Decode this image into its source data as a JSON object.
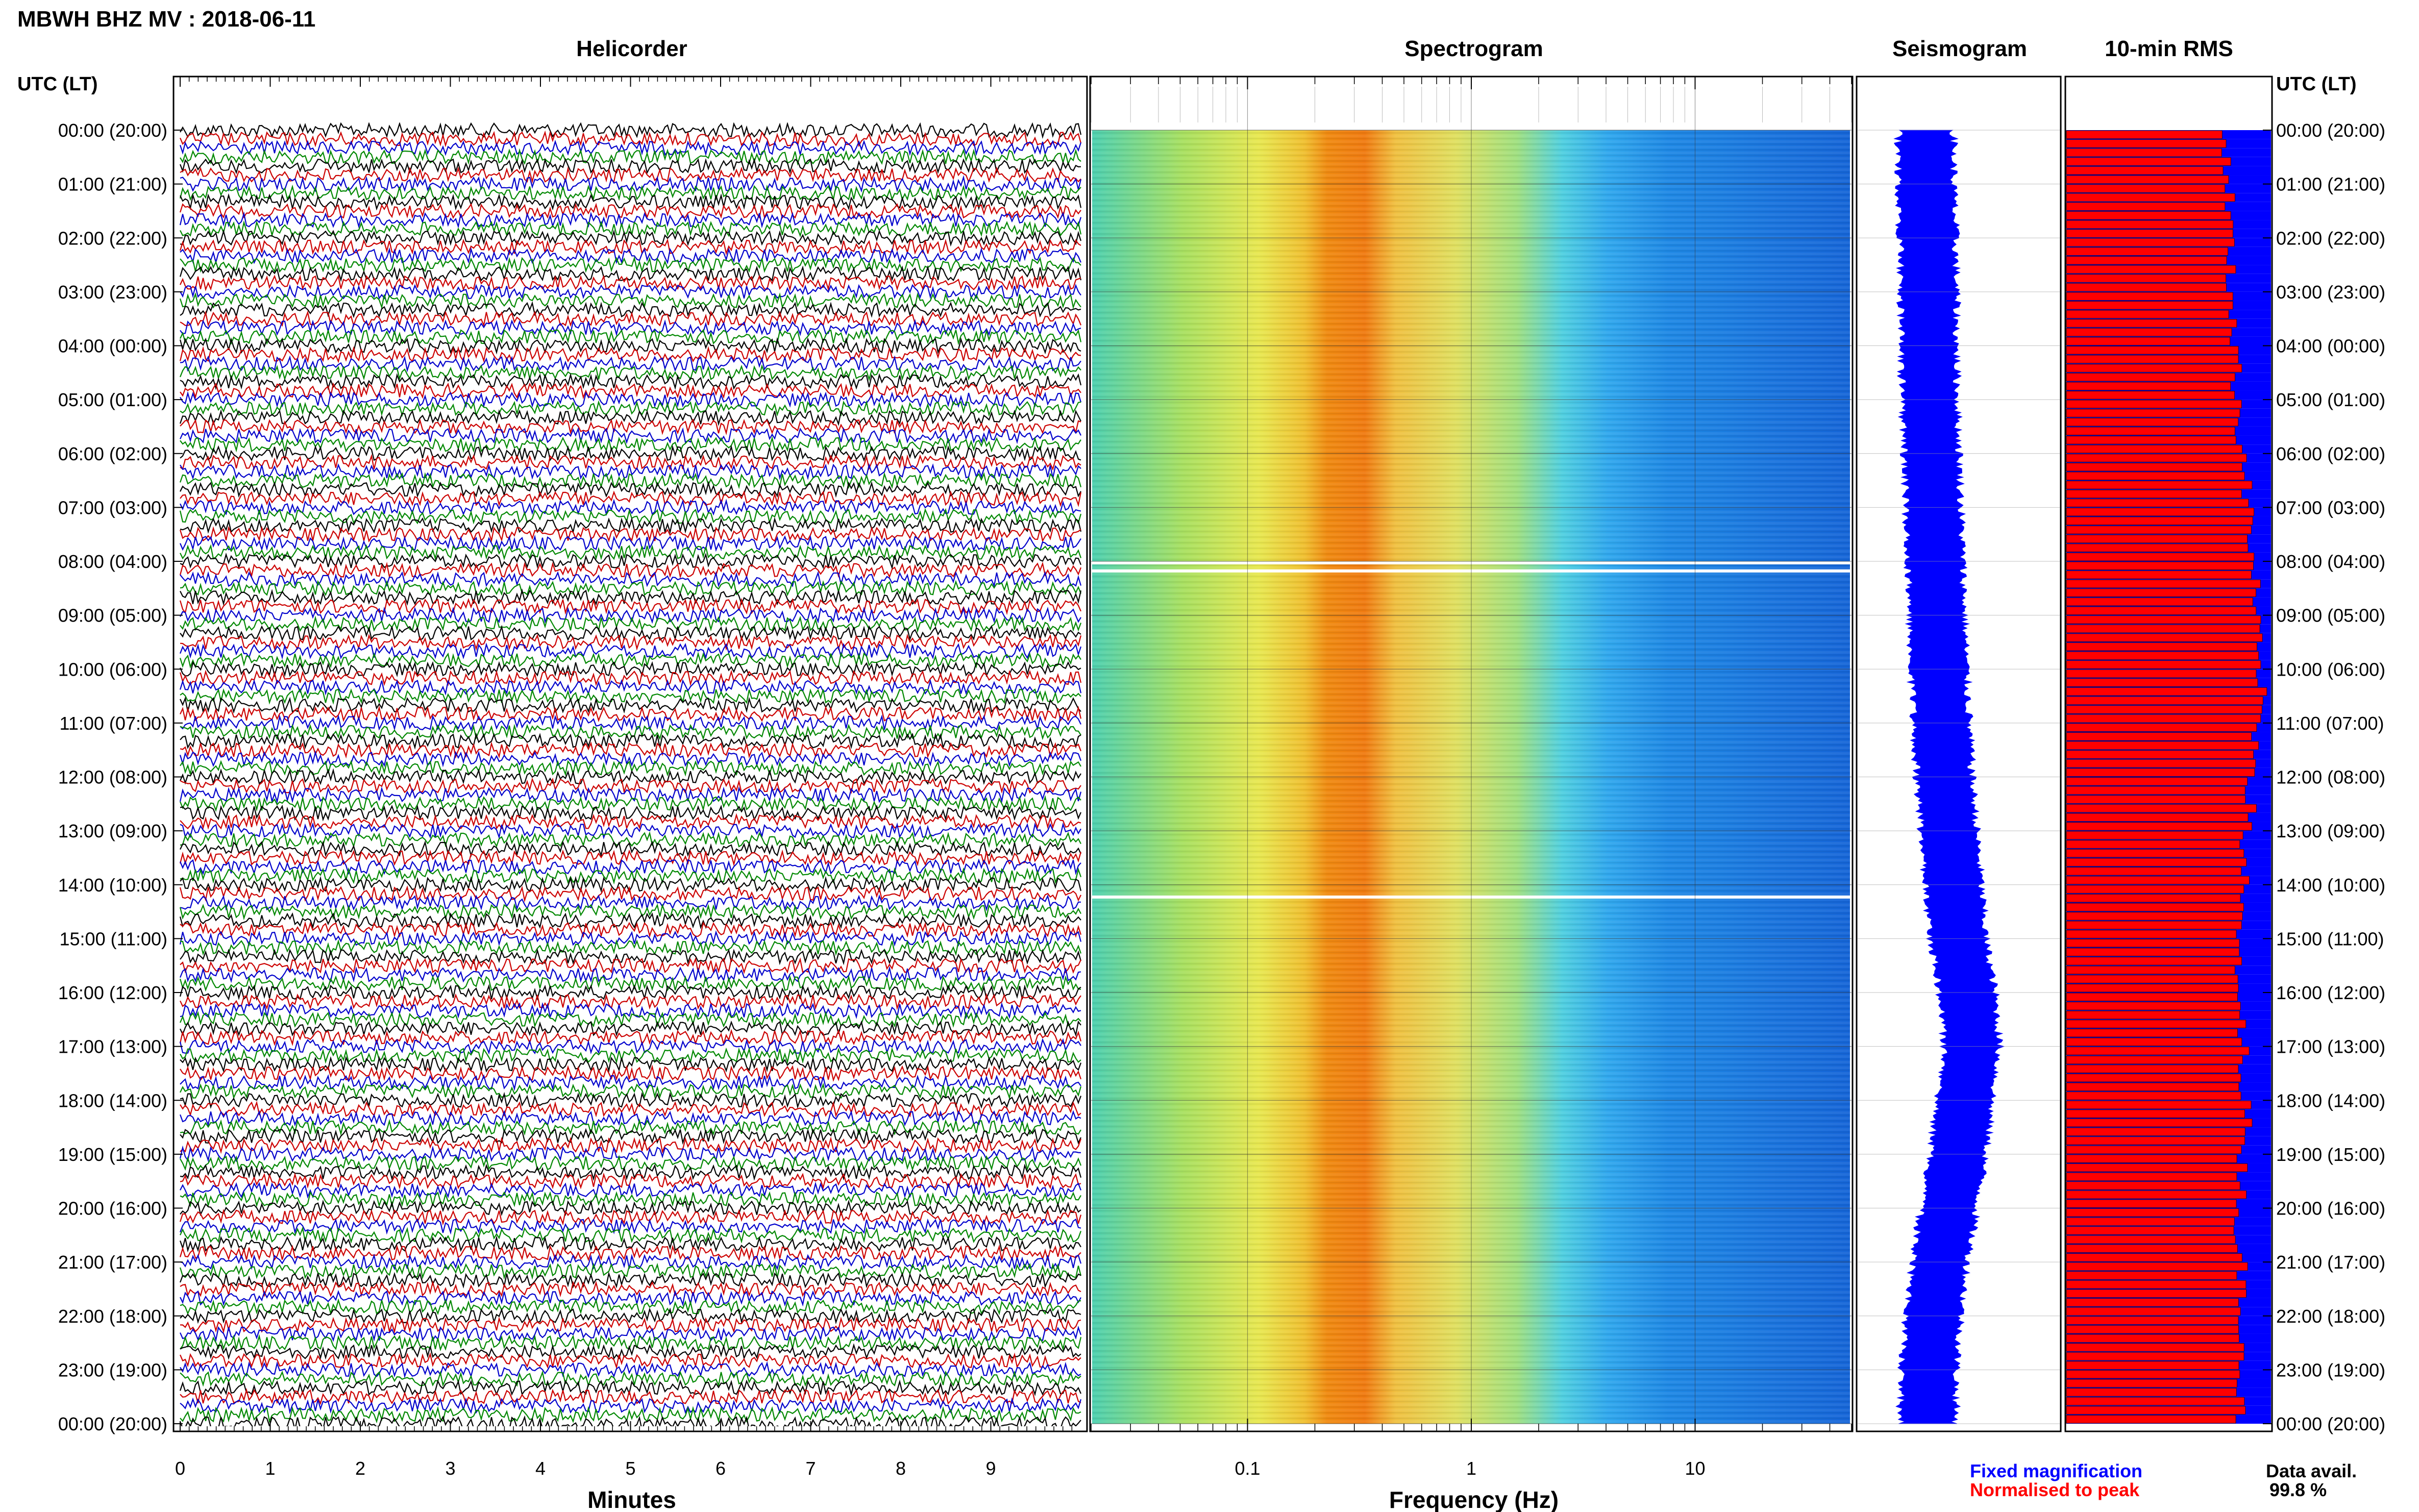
{
  "page": {
    "title": "MBWH BHZ MV : 2018-06-11",
    "time_axis_label_left": "UTC (LT)",
    "time_axis_label_right": "UTC (LT)"
  },
  "panels": {
    "helicorder": {
      "title": "Helicorder",
      "xlabel": "Minutes"
    },
    "spectrogram": {
      "title": "Spectrogram",
      "xlabel": "Frequency (Hz)"
    },
    "seismogram": {
      "title": "Seismogram"
    },
    "rms": {
      "title": "10-min RMS"
    }
  },
  "legend": {
    "fixed": "Fixed magnification",
    "normalised": "Normalised to peak",
    "fixed_color": "#0000ff",
    "normalised_color": "#ff0000",
    "avail_label": "Data avail.",
    "avail_value": "99.8 %"
  },
  "chart_data": [
    {
      "type": "line",
      "panel": "helicorder",
      "title": "Helicorder",
      "xlabel": "Minutes",
      "x_ticks": [
        "0",
        "1",
        "2",
        "3",
        "4",
        "5",
        "6",
        "7",
        "8",
        "9"
      ],
      "xlim": [
        0,
        10
      ],
      "time_labels": [
        "00:00 (20:00)",
        "01:00 (21:00)",
        "02:00 (22:00)",
        "03:00 (23:00)",
        "04:00 (00:00)",
        "05:00 (01:00)",
        "06:00 (02:00)",
        "07:00 (03:00)",
        "08:00 (04:00)",
        "09:00 (05:00)",
        "10:00 (06:00)",
        "11:00 (07:00)",
        "12:00 (08:00)",
        "13:00 (09:00)",
        "14:00 (10:00)",
        "15:00 (11:00)",
        "16:00 (12:00)",
        "17:00 (13:00)",
        "18:00 (14:00)",
        "19:00 (15:00)",
        "20:00 (16:00)",
        "21:00 (17:00)",
        "22:00 (18:00)",
        "23:00 (19:00)",
        "00:00 (20:00)"
      ],
      "trace_colors": [
        "#000000",
        "#cc0000",
        "#0000cc",
        "#008800"
      ],
      "traces_per_hour": 6
    },
    {
      "type": "heatmap",
      "panel": "spectrogram",
      "title": "Spectrogram",
      "xlabel": "Frequency (Hz)",
      "x_scale": "log",
      "xlim": [
        0.02,
        50
      ],
      "x_ticks": [
        {
          "value": 0.1,
          "label": "0.1"
        },
        {
          "value": 1,
          "label": "1"
        },
        {
          "value": 10,
          "label": "10"
        }
      ],
      "peak_band_hz": [
        0.2,
        0.4
      ],
      "colormap": [
        "#1565d8",
        "#1e88e5",
        "#29b6f6",
        "#4dd0e1",
        "#80e0a0",
        "#c0e060",
        "#f0e040",
        "#f0a020",
        "#e06000"
      ]
    },
    {
      "type": "area",
      "panel": "seismogram",
      "title": "Seismogram",
      "color": "#0000ff",
      "amplitude_hourly": [
        0.3,
        0.3,
        0.32,
        0.33,
        0.33,
        0.34,
        0.36,
        0.38,
        0.4,
        0.42,
        0.44,
        0.47,
        0.5,
        0.55,
        0.6,
        0.65,
        0.75,
        0.8,
        0.72,
        0.65,
        0.55,
        0.45,
        0.38,
        0.33,
        0.32
      ]
    },
    {
      "type": "bar",
      "panel": "rms",
      "title": "10-min RMS",
      "series": [
        {
          "name": "Fixed magnification",
          "color": "#0000ff"
        },
        {
          "name": "Normalised to peak",
          "color": "#ff0000"
        }
      ],
      "normalised_hourly": [
        0.78,
        0.8,
        0.8,
        0.82,
        0.83,
        0.85,
        0.88,
        0.9,
        0.92,
        0.93,
        0.95,
        0.93,
        0.9,
        0.87,
        0.85,
        0.83,
        0.85,
        0.87,
        0.88,
        0.86,
        0.84,
        0.86,
        0.87,
        0.85,
        0.84
      ]
    }
  ]
}
